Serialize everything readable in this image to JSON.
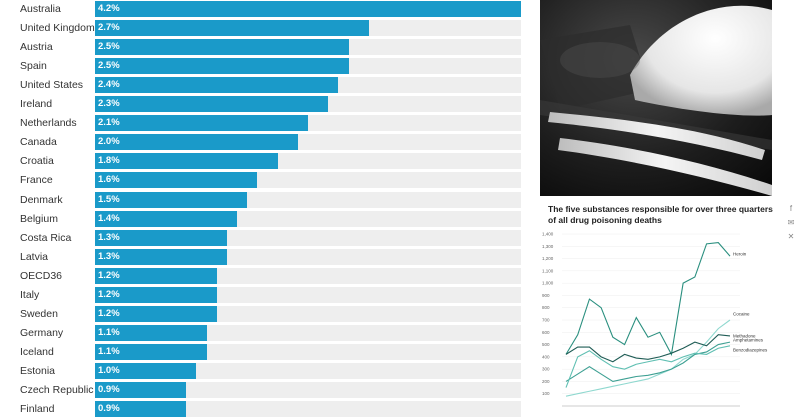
{
  "bar_chart": {
    "color": "#1a9ac9",
    "items": [
      {
        "country": "Australia",
        "label": "4.2%",
        "value": 4.2
      },
      {
        "country": "United Kingdom",
        "label": "2.7%",
        "value": 2.7
      },
      {
        "country": "Austria",
        "label": "2.5%",
        "value": 2.5
      },
      {
        "country": "Spain",
        "label": "2.5%",
        "value": 2.5
      },
      {
        "country": "United States",
        "label": "2.4%",
        "value": 2.4
      },
      {
        "country": "Ireland",
        "label": "2.3%",
        "value": 2.3
      },
      {
        "country": "Netherlands",
        "label": "2.1%",
        "value": 2.1
      },
      {
        "country": "Canada",
        "label": "2.0%",
        "value": 2.0
      },
      {
        "country": "Croatia",
        "label": "1.8%",
        "value": 1.8
      },
      {
        "country": "France",
        "label": "1.6%",
        "value": 1.6
      },
      {
        "country": "Denmark",
        "label": "1.5%",
        "value": 1.5
      },
      {
        "country": "Belgium",
        "label": "1.4%",
        "value": 1.4
      },
      {
        "country": "Costa Rica",
        "label": "1.3%",
        "value": 1.3
      },
      {
        "country": "Latvia",
        "label": "1.3%",
        "value": 1.3
      },
      {
        "country": "OECD36",
        "label": "1.2%",
        "value": 1.2
      },
      {
        "country": "Italy",
        "label": "1.2%",
        "value": 1.2
      },
      {
        "country": "Sweden",
        "label": "1.2%",
        "value": 1.2
      },
      {
        "country": "Germany",
        "label": "1.1%",
        "value": 1.1
      },
      {
        "country": "Iceland",
        "label": "1.1%",
        "value": 1.1
      },
      {
        "country": "Estonia",
        "label": "1.0%",
        "value": 1.0
      },
      {
        "country": "Czech Republic",
        "label": "0.9%",
        "value": 0.9
      },
      {
        "country": "Finland",
        "label": "0.9%",
        "value": 0.9
      }
    ]
  },
  "share_icons": [
    "facebook-icon",
    "email-icon",
    "twitter-icon"
  ],
  "chart_data": {
    "type": "line",
    "title": "The five substances responsible for over three quarters of all drug poisoning deaths",
    "y_ticks": [
      "1,400",
      "1,300",
      "1,200",
      "1,100",
      "1,000",
      "900",
      "800",
      "700",
      "600",
      "500",
      "400",
      "300",
      "200",
      "100"
    ],
    "ylim": [
      0,
      1400
    ],
    "series": [
      {
        "name": "Heroin",
        "color": "#2a8f7f",
        "values": [
          420,
          580,
          870,
          800,
          560,
          500,
          720,
          560,
          600,
          420,
          1000,
          1050,
          1320,
          1330,
          1220
        ]
      },
      {
        "name": "Cocaine",
        "color": "#8fd8cf",
        "values": [
          80,
          100,
          120,
          140,
          160,
          180,
          200,
          220,
          260,
          300,
          380,
          420,
          520,
          630,
          700
        ]
      },
      {
        "name": "Methadone",
        "color": "#1f5c55",
        "values": [
          420,
          480,
          480,
          400,
          360,
          420,
          390,
          380,
          400,
          430,
          470,
          520,
          490,
          580,
          570
        ]
      },
      {
        "name": "Amphetamines",
        "color": "#3ea093",
        "values": [
          200,
          260,
          320,
          260,
          200,
          220,
          240,
          250,
          270,
          300,
          350,
          420,
          440,
          500,
          520
        ]
      },
      {
        "name": "Benzodiazepines",
        "color": "#5fbfb2",
        "values": [
          150,
          400,
          450,
          380,
          320,
          300,
          340,
          360,
          380,
          360,
          400,
          430,
          420,
          470,
          490
        ]
      }
    ]
  }
}
